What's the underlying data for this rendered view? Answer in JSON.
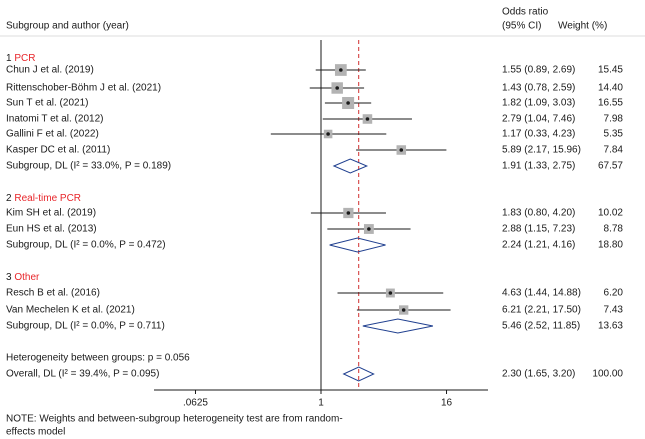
{
  "chart_data": {
    "type": "forest",
    "header": {
      "left": "Subgroup and author (year)",
      "or_top": "Odds ratio",
      "or_bottom": "(95% CI)",
      "weight": "Weight (%)"
    },
    "x_scale": "log",
    "xlim": [
      0.025,
      40
    ],
    "x_ticks": [
      {
        "value": 0.0625,
        "label": ".0625"
      },
      {
        "value": 1,
        "label": "1"
      },
      {
        "value": 16,
        "label": "16"
      }
    ],
    "null_line": 1,
    "overall_line": 2.3,
    "groups": [
      {
        "number": "1",
        "name": "PCR",
        "studies": [
          {
            "label": "Chun J et al. (2019)",
            "or": 1.55,
            "lo": 0.89,
            "hi": 2.69,
            "ci_text": "1.55 (0.89, 2.69)",
            "weight": 15.45,
            "weight_text": "15.45"
          },
          {
            "label": "Rittenschober-Böhm J et al. (2021)",
            "or": 1.43,
            "lo": 0.78,
            "hi": 2.59,
            "ci_text": "1.43 (0.78, 2.59)",
            "weight": 14.4,
            "weight_text": "14.40"
          },
          {
            "label": "Sun T  et al. (2021)",
            "or": 1.82,
            "lo": 1.09,
            "hi": 3.03,
            "ci_text": "1.82 (1.09, 3.03)",
            "weight": 16.55,
            "weight_text": "16.55"
          },
          {
            "label": "Inatomi T et al. (2012)",
            "or": 2.79,
            "lo": 1.04,
            "hi": 7.46,
            "ci_text": "2.79 (1.04, 7.46)",
            "weight": 7.98,
            "weight_text": "7.98"
          },
          {
            "label": "Gallini F et al. (2022)",
            "or": 1.17,
            "lo": 0.33,
            "hi": 4.23,
            "ci_text": "1.17 (0.33, 4.23)",
            "weight": 5.35,
            "weight_text": "5.35"
          },
          {
            "label": "Kasper DC et al. (2011)",
            "or": 5.89,
            "lo": 2.17,
            "hi": 15.96,
            "ci_text": "5.89 (2.17, 15.96)",
            "weight": 7.84,
            "weight_text": "7.84"
          }
        ],
        "subgroup": {
          "label": "Subgroup, DL (I² = 33.0%, P = 0.189)",
          "or": 1.91,
          "lo": 1.33,
          "hi": 2.75,
          "ci_text": "1.91 (1.33, 2.75)",
          "weight_text": "67.57"
        }
      },
      {
        "number": "2",
        "name": "Real-time PCR",
        "studies": [
          {
            "label": "Kim SH et al. (2019)",
            "or": 1.83,
            "lo": 0.8,
            "hi": 4.2,
            "ci_text": "1.83 (0.80, 4.20)",
            "weight": 10.02,
            "weight_text": "10.02"
          },
          {
            "label": "Eun HS et al. (2013)",
            "or": 2.88,
            "lo": 1.15,
            "hi": 7.23,
            "ci_text": "2.88 (1.15, 7.23)",
            "weight": 8.78,
            "weight_text": "8.78"
          }
        ],
        "subgroup": {
          "label": "Subgroup, DL (I² = 0.0%, P = 0.472)",
          "or": 2.24,
          "lo": 1.21,
          "hi": 4.16,
          "ci_text": "2.24 (1.21, 4.16)",
          "weight_text": "18.80"
        }
      },
      {
        "number": "3",
        "name": "Other",
        "studies": [
          {
            "label": "Resch B et al. (2016)",
            "or": 4.63,
            "lo": 1.44,
            "hi": 14.88,
            "ci_text": "4.63 (1.44, 14.88)",
            "weight": 6.2,
            "weight_text": "6.20"
          },
          {
            "label": "Van Mechelen K et al. (2021)",
            "or": 6.21,
            "lo": 2.21,
            "hi": 17.5,
            "ci_text": "6.21 (2.21, 17.50)",
            "weight": 7.43,
            "weight_text": "7.43"
          }
        ],
        "subgroup": {
          "label": "Subgroup, DL (I² = 0.0%, P = 0.711)",
          "or": 5.46,
          "lo": 2.52,
          "hi": 11.85,
          "ci_text": "5.46 (2.52, 11.85)",
          "weight_text": "13.63"
        }
      }
    ],
    "heterogeneity": "Heterogeneity between groups: p = 0.056",
    "overall": {
      "label": "Overall, DL (I² = 39.4%, P = 0.095)",
      "or": 2.3,
      "lo": 1.65,
      "hi": 3.2,
      "ci_text": "2.30 (1.65, 3.20)",
      "weight_text": "100.00"
    },
    "note_lines": [
      "NOTE: Weights and between-subgroup heterogeneity test are from random-",
      "effects model"
    ],
    "colors": {
      "text": "#1a1a1a",
      "group_name": "#e8252a",
      "box": "#b3b3b3",
      "diamond": "#1f3f8f",
      "overall_line": "#d03030",
      "axis": "#1a1a1a"
    }
  }
}
